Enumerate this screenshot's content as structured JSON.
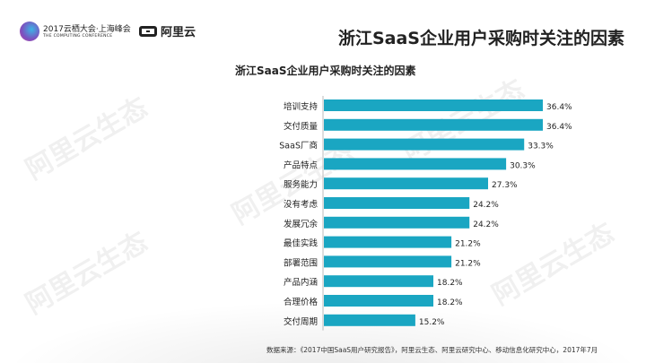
{
  "header": {
    "logo_conference_cn": "2017云栖大会·上海峰会",
    "logo_conference_en": "THE COMPUTING CONFERENCE",
    "logo_aliyun": "阿里云",
    "title": "浙江SaaS企业用户采购时关注的因素"
  },
  "watermark": "阿里云生态",
  "chart_data": {
    "type": "bar",
    "orientation": "horizontal",
    "title": "浙江SaaS企业用户采购时关注的因素",
    "categories": [
      "培训支持",
      "交付质量",
      "SaaS厂商",
      "产品特点",
      "服务能力",
      "没有考虑",
      "发展冗余",
      "最佳实践",
      "部署范围",
      "产品内涵",
      "合理价格",
      "交付周期"
    ],
    "values": [
      36.4,
      36.4,
      33.3,
      30.3,
      27.3,
      24.2,
      24.2,
      21.2,
      21.2,
      18.2,
      18.2,
      15.2
    ],
    "labels": [
      "36.4%",
      "36.4%",
      "33.3%",
      "30.3%",
      "27.3%",
      "24.2%",
      "24.2%",
      "21.2%",
      "21.2%",
      "18.2%",
      "18.2%",
      "15.2%"
    ],
    "unit": "%",
    "color": "#1aa6c2",
    "grid": false
  },
  "footer": {
    "source": "数据来源：《2017中国SaaS用户研究报告》，阿里云生态、阿里云研究中心、移动信息化研究中心，2017年7月"
  }
}
